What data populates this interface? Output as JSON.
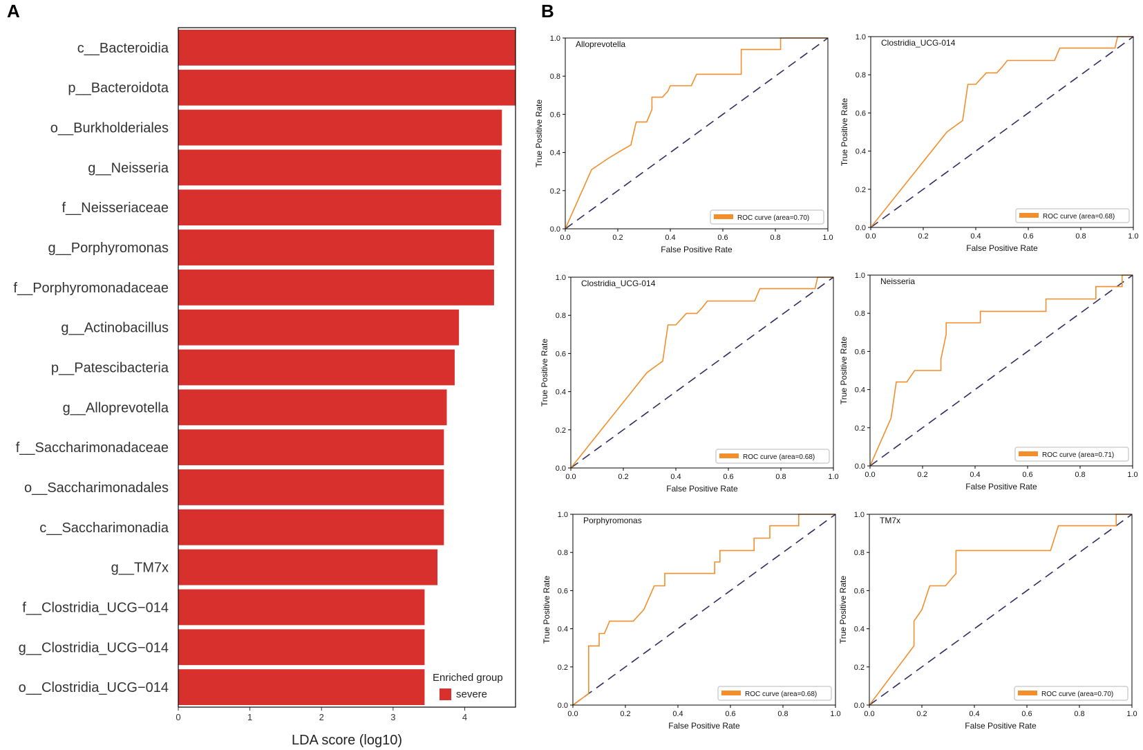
{
  "panels": {
    "a_label": "A",
    "b_label": "B"
  },
  "colors": {
    "bar": "#d7302d",
    "roc": "#f28e2b",
    "diagonal": "#2b2d62",
    "frame": "#000000"
  },
  "chart_data": [
    {
      "type": "bar",
      "orientation": "horizontal",
      "categories": [
        "c__Bacteroidia",
        "p__Bacteroidota",
        "o__Burkholderiales",
        "g__Neisseria",
        "f__Neisseriaceae",
        "g__Porphyromonas",
        "f__Porphyromonadaceae",
        "g__Actinobacillus",
        "p__Patescibacteria",
        "g__Alloprevotella",
        "f__Saccharimonadaceae",
        "o__Saccharimonadales",
        "c__Saccharimonadia",
        "g__TM7x",
        "f__Clostridia_UCG-014",
        "g__Clostridia_UCG-014",
        "o__Clostridia_UCG-014"
      ],
      "category_labels": [
        "c__Bacteroidia",
        "p__Bacteroidota",
        "o__Burkholderiales",
        "g__Neisseria",
        "f__Neisseriaceae",
        "g__Porphyromonas",
        "f__Porphyromonadaceae",
        "g__Actinobacillus",
        "p__Patescibacteria",
        "g__Alloprevotella",
        "f__Saccharimonadaceae",
        "o__Saccharimonadales",
        "c__Saccharimonadia",
        "g__TM7x",
        "f__Clostridia_UCG−014",
        "g__Clostridia_UCG−014",
        "o__Clostridia_UCG−014"
      ],
      "values": [
        4.71,
        4.71,
        4.52,
        4.51,
        4.51,
        4.41,
        4.41,
        3.92,
        3.86,
        3.75,
        3.71,
        3.71,
        3.71,
        3.62,
        3.44,
        3.44,
        3.44
      ],
      "xlabel": "LDA score (log10)",
      "xlim": [
        0,
        4.71
      ],
      "xticks": [
        0,
        1,
        2,
        3,
        4
      ],
      "xtick_labels": [
        "0",
        "1",
        "2",
        "3",
        "4"
      ],
      "legend": {
        "title": "Enriched group",
        "items": [
          "severe"
        ]
      }
    },
    {
      "type": "line",
      "subtype": "roc",
      "title": "Alloprevotella",
      "x": [
        0,
        0.1,
        0.17,
        0.25,
        0.27,
        0.31,
        0.33,
        0.33,
        0.37,
        0.39,
        0.4,
        0.48,
        0.5,
        0.67,
        0.67,
        0.82,
        0.82,
        1.0
      ],
      "y": [
        0,
        0.31,
        0.375,
        0.44,
        0.56,
        0.56,
        0.625,
        0.69,
        0.69,
        0.72,
        0.75,
        0.75,
        0.81,
        0.81,
        0.94,
        0.94,
        1.0,
        1.0
      ],
      "auc": 0.7,
      "legend": "ROC curve (area=0.70)",
      "xlabel": "False Positive Rate",
      "ylabel": "True Positive Rate",
      "xlim": [
        0,
        1
      ],
      "ylim": [
        0,
        1
      ],
      "ticks": [
        "0.0",
        "0.2",
        "0.4",
        "0.6",
        "0.8",
        "1.0"
      ]
    },
    {
      "type": "line",
      "subtype": "roc",
      "title": "Clostridia_UCG-014",
      "x": [
        0,
        0.29,
        0.35,
        0.37,
        0.4,
        0.42,
        0.44,
        0.48,
        0.5,
        0.52,
        0.56,
        0.7,
        0.72,
        0.93,
        0.94,
        1.0
      ],
      "y": [
        0,
        0.5,
        0.56,
        0.75,
        0.75,
        0.78,
        0.81,
        0.81,
        0.84,
        0.875,
        0.875,
        0.875,
        0.94,
        0.94,
        1.0,
        1.0
      ],
      "auc": 0.68,
      "legend": "ROC curve (area=0.68)",
      "xlabel": "False Positive Rate",
      "ylabel": "True Positive Rate",
      "xlim": [
        0,
        1
      ],
      "ylim": [
        0,
        1
      ],
      "ticks": [
        "0.0",
        "0.2",
        "0.4",
        "0.6",
        "0.8",
        "1.0"
      ]
    },
    {
      "type": "line",
      "subtype": "roc",
      "title": "Clostridia_UCG-014",
      "x": [
        0,
        0.29,
        0.35,
        0.37,
        0.4,
        0.42,
        0.44,
        0.48,
        0.5,
        0.52,
        0.56,
        0.7,
        0.72,
        0.93,
        0.94,
        1.0
      ],
      "y": [
        0,
        0.5,
        0.56,
        0.75,
        0.75,
        0.78,
        0.81,
        0.81,
        0.84,
        0.875,
        0.875,
        0.875,
        0.94,
        0.94,
        1.0,
        1.0
      ],
      "auc": 0.68,
      "legend": "ROC curve (area=0.68)",
      "xlabel": "False Positive Rate",
      "ylabel": "True Positive Rate",
      "xlim": [
        0,
        1
      ],
      "ylim": [
        0,
        1
      ],
      "ticks": [
        "0.0",
        "0.2",
        "0.4",
        "0.6",
        "0.8",
        "1.0"
      ]
    },
    {
      "type": "line",
      "subtype": "roc",
      "title": "Neisseria",
      "x": [
        0,
        0.08,
        0.1,
        0.1,
        0.14,
        0.17,
        0.27,
        0.27,
        0.29,
        0.29,
        0.42,
        0.42,
        0.67,
        0.67,
        0.86,
        0.86,
        0.96,
        0.96,
        1.0
      ],
      "y": [
        0,
        0.25,
        0.44,
        0.44,
        0.44,
        0.5,
        0.5,
        0.56,
        0.69,
        0.75,
        0.75,
        0.81,
        0.81,
        0.875,
        0.875,
        0.94,
        0.94,
        1.0,
        1.0
      ],
      "auc": 0.71,
      "legend": "ROC curve (area=0.71)",
      "xlabel": "False Positive Rate",
      "ylabel": "True Positive Rate",
      "xlim": [
        0,
        1
      ],
      "ylim": [
        0,
        1
      ],
      "ticks": [
        "0.0",
        "0.2",
        "0.4",
        "0.6",
        "0.8",
        "1.0"
      ]
    },
    {
      "type": "line",
      "subtype": "roc",
      "title": "Porphyromonas",
      "x": [
        0,
        0.06,
        0.06,
        0.1,
        0.1,
        0.12,
        0.14,
        0.23,
        0.27,
        0.31,
        0.35,
        0.35,
        0.54,
        0.54,
        0.56,
        0.56,
        0.69,
        0.69,
        0.75,
        0.75,
        0.86,
        0.86,
        1.0
      ],
      "y": [
        0,
        0.06,
        0.31,
        0.31,
        0.375,
        0.375,
        0.44,
        0.44,
        0.5,
        0.625,
        0.625,
        0.69,
        0.69,
        0.75,
        0.75,
        0.81,
        0.81,
        0.875,
        0.875,
        0.94,
        0.94,
        1.0,
        1.0
      ],
      "auc": 0.68,
      "legend": "ROC curve (area=0.68)",
      "xlabel": "False Positive Rate",
      "ylabel": "True Positive Rate",
      "xlim": [
        0,
        1
      ],
      "ylim": [
        0,
        1
      ],
      "ticks": [
        "0.0",
        "0.2",
        "0.4",
        "0.6",
        "0.8",
        "1.0"
      ]
    },
    {
      "type": "line",
      "subtype": "roc",
      "title": "TM7x",
      "x": [
        0,
        0.17,
        0.17,
        0.2,
        0.23,
        0.27,
        0.29,
        0.33,
        0.33,
        0.69,
        0.72,
        0.94,
        0.94,
        1.0
      ],
      "y": [
        0,
        0.31,
        0.44,
        0.5,
        0.625,
        0.625,
        0.625,
        0.69,
        0.81,
        0.81,
        0.94,
        0.94,
        1.0,
        1.0
      ],
      "auc": 0.7,
      "legend": "ROC curve (area=0.70)",
      "xlabel": "False Positive Rate",
      "ylabel": "True Positive Rate",
      "xlim": [
        0,
        1
      ],
      "ylim": [
        0,
        1
      ],
      "ticks": [
        "0.0",
        "0.2",
        "0.4",
        "0.6",
        "0.8",
        "1.0"
      ]
    }
  ]
}
